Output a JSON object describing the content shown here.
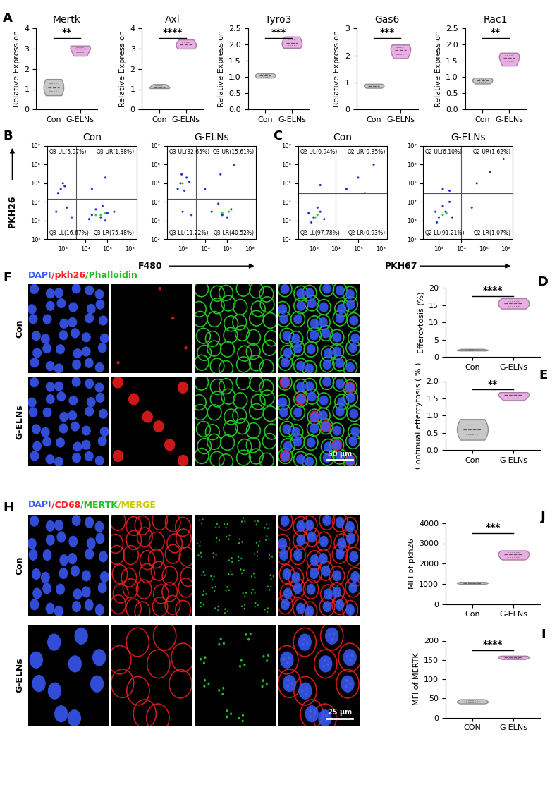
{
  "panel_letters": [
    "A",
    "B",
    "C",
    "F",
    "D",
    "E",
    "H",
    "J",
    "I"
  ],
  "chart_data": [
    {
      "type": "violin",
      "title": "Mertk",
      "y_label": "Relative Expression",
      "categories": [
        "Con",
        "G-ELNs"
      ],
      "values": [
        [
          0.7,
          1.1,
          1.5
        ],
        [
          2.65,
          3.0,
          3.15
        ]
      ],
      "colors": [
        "#c8c8c8",
        "#e9aee3"
      ],
      "ylim": [
        0,
        4
      ],
      "yticks": [
        0,
        1,
        2,
        3,
        4
      ],
      "significance": "**"
    },
    {
      "type": "violin",
      "title": "Axl",
      "y_label": "Relative Expression",
      "categories": [
        "Con",
        "G-ELNs"
      ],
      "values": [
        [
          1.05,
          1.1,
          1.25
        ],
        [
          3.0,
          3.2,
          3.45
        ]
      ],
      "colors": [
        "#c8c8c8",
        "#e9aee3"
      ],
      "ylim": [
        0,
        4
      ],
      "yticks": [
        0,
        1,
        2,
        3,
        4
      ],
      "significance": "****"
    },
    {
      "type": "violin",
      "title": "Tyro3",
      "y_label": "Relative Expression",
      "categories": [
        "Con",
        "G-ELNs"
      ],
      "values": [
        [
          0.98,
          1.05,
          1.12
        ],
        [
          1.9,
          2.05,
          2.25
        ]
      ],
      "colors": [
        "#c8c8c8",
        "#e9aee3"
      ],
      "ylim": [
        0,
        2.5
      ],
      "yticks": [
        {
          "value": 0,
          "label": "0.0"
        },
        0.5,
        {
          "value": 1,
          "label": "1.0"
        },
        1.5,
        {
          "value": 2,
          "label": "2.0"
        },
        2.5
      ],
      "significance": "***"
    },
    {
      "type": "violin",
      "title": "Gas6",
      "y_label": "Relative Expression",
      "categories": [
        "Con",
        "G-ELNs"
      ],
      "values": [
        [
          0.8,
          0.88,
          0.95
        ],
        [
          1.9,
          2.2,
          2.4
        ]
      ],
      "colors": [
        "#c8c8c8",
        "#e9aee3"
      ],
      "ylim": [
        0,
        3
      ],
      "yticks": [
        0,
        1,
        2,
        3
      ],
      "significance": "***"
    },
    {
      "type": "violin",
      "title": "Rac1",
      "y_label": "Relative Expression",
      "categories": [
        "Con",
        "G-ELNs"
      ],
      "values": [
        [
          0.8,
          0.9,
          0.98
        ],
        [
          1.35,
          1.6,
          1.75
        ]
      ],
      "colors": [
        "#c8c8c8",
        "#e9aee3"
      ],
      "ylim": [
        0,
        2.5
      ],
      "yticks": [
        {
          "value": 0,
          "label": "0.0"
        },
        0.5,
        {
          "value": 1,
          "label": "1.0"
        },
        1.5,
        {
          "value": 2,
          "label": "2.0"
        },
        2.5
      ],
      "significance": "**"
    },
    {
      "type": "scatter",
      "log": true,
      "x_label": "F480",
      "y_label": "PKH26",
      "xlim": [
        200,
        2000000
      ],
      "ylim": [
        100,
        10000000
      ],
      "xticks": [
        {
          "value": 1000,
          "label": "10³"
        },
        {
          "value": 10000,
          "label": "10⁴"
        },
        {
          "value": 100000,
          "label": "10⁵"
        },
        {
          "value": 1000000,
          "label": "10⁶"
        }
      ],
      "yticks": [
        {
          "value": 100,
          "label": "10²"
        },
        {
          "value": 1000,
          "label": "10³"
        },
        {
          "value": 10000,
          "label": "10⁴"
        },
        {
          "value": 100000,
          "label": "10⁵"
        },
        {
          "value": 1000000,
          "label": "10⁶"
        },
        {
          "value": 10000000,
          "label": "10⁷"
        }
      ],
      "plots": [
        {
          "title": "Con",
          "gate": {
            "x": 4000,
            "y": 15000
          },
          "quadrants": {
            "UL": "Q3-UL(5.97%)",
            "UR": "Q3-UR(1.88%)",
            "LL": "Q3-LL(16.67%)",
            "LR": "Q3-LR(75.48%)"
          },
          "series": [
            {
              "color": "#1f2fd0",
              "x": [
                20000,
                50000,
                100000,
                30000,
                80000,
                15000,
                200000,
                60000,
                800,
                1000,
                600,
                1200,
                500,
                1500,
                2500,
                20000,
                80000
              ],
              "y": [
                2000,
                1500,
                2500,
                4000,
                1000,
                1200,
                3000,
                6000,
                50000,
                100000,
                30000,
                70000,
                3000,
                5000,
                1500,
                50000,
                200000
              ]
            },
            {
              "color": "#2ecc40",
              "x": [
                50000,
                80000,
                30000
              ],
              "y": [
                2000,
                2500,
                2000
              ]
            }
          ]
        },
        {
          "title": "G-ELNs",
          "gate": {
            "x": 4000,
            "y": 15000
          },
          "quadrants": {
            "UL": "Q3-UL(32.65%)",
            "UR": "Q3-UR(15.61%)",
            "LL": "Q3-LL(11.22%)",
            "LR": "Q3-LR(40.52%)"
          },
          "series": [
            {
              "color": "#1f2fd0",
              "x": [
                800,
                1500,
                600,
                1200,
                2000,
                900,
                20000,
                60000,
                150000,
                40000,
                100000,
                10000,
                50000,
                200000,
                1000,
                2500
              ],
              "y": [
                100000,
                200000,
                50000,
                40000,
                120000,
                300000,
                3000,
                2000,
                4000,
                8000,
                1500,
                50000,
                300000,
                1000000,
                3000,
                2000
              ]
            },
            {
              "color": "#2ecc40",
              "x": [
                1000,
                60000,
                120000
              ],
              "y": [
                100000,
                2500,
                3000
              ]
            }
          ]
        }
      ]
    },
    {
      "type": "scatter",
      "log": true,
      "x_label": "PKH67",
      "xlim": [
        200,
        2000000
      ],
      "ylim": [
        100,
        10000000
      ],
      "xticks": [
        {
          "value": 1000,
          "label": "10³"
        },
        {
          "value": 10000,
          "label": "10⁴"
        },
        {
          "value": 100000,
          "label": "10⁵"
        },
        {
          "value": 1000000,
          "label": "10⁶"
        }
      ],
      "yticks": [
        {
          "value": 100,
          "label": "10²"
        },
        {
          "value": 1000,
          "label": "10³"
        },
        {
          "value": 10000,
          "label": "10⁴"
        },
        {
          "value": 100000,
          "label": "10⁵"
        },
        {
          "value": 1000000,
          "label": "10⁶"
        },
        {
          "value": 10000000,
          "label": "10⁷"
        }
      ],
      "plots": [
        {
          "title": "Con",
          "gate": {
            "x": 10000,
            "y": 30000
          },
          "quadrants": {
            "UL": "Q2-UL(0.94%)",
            "UR": "Q2-UR(0.35%)",
            "LL": "Q2-LL(97.78%)",
            "LR": "Q2-LR(0.93%)"
          },
          "series": [
            {
              "color": "#1f2fd0",
              "x": [
                1000,
                2000,
                800,
                3000,
                1500,
                600,
                30000,
                100000,
                500000,
                200000,
                2000
              ],
              "y": [
                1500,
                3000,
                800,
                1200,
                5000,
                2500,
                50000,
                200000,
                1000000,
                30000,
                80000
              ]
            },
            {
              "color": "#2ecc40",
              "x": [
                1200,
                1500
              ],
              "y": [
                1500,
                2000
              ]
            }
          ]
        },
        {
          "title": "G-ELNs",
          "gate": {
            "x": 10000,
            "y": 30000
          },
          "quadrants": {
            "UL": "Q2-UL(6.10%)",
            "UR": "Q2-UR(1.62%)",
            "LL": "Q2-LL(91.21%)",
            "LR": "Q2-LR(1.07%)"
          },
          "series": [
            {
              "color": "#1f2fd0",
              "x": [
                1000,
                2000,
                800,
                4000,
                1500,
                3000,
                700,
                1500,
                3000,
                50000,
                200000,
                800000,
                30000
              ],
              "y": [
                1500,
                3000,
                800,
                1500,
                6000,
                10000,
                3000,
                50000,
                40000,
                100000,
                400000,
                2000000,
                5000
              ]
            },
            {
              "color": "#2ecc40",
              "x": [
                1500,
                2200
              ],
              "y": [
                2000,
                2500
              ]
            }
          ]
        }
      ]
    },
    {
      "type": "violin",
      "y_label": "Effercytosis (%)",
      "categories": [
        "Con",
        "G-ELNs"
      ],
      "values": [
        [
          1.8,
          2.0,
          2.3
        ],
        [
          14.0,
          15.5,
          17.0
        ]
      ],
      "colors": [
        "#c8c8c8",
        "#e9aee3"
      ],
      "ylim": [
        0,
        20
      ],
      "yticks": [
        0,
        5,
        10,
        15,
        20
      ],
      "significance": "****"
    },
    {
      "type": "violin",
      "y_label": "Continual effercytosis ( % )",
      "categories": [
        "Con",
        "G-ELNs"
      ],
      "values": [
        [
          0.3,
          0.6,
          0.9
        ],
        [
          1.45,
          1.6,
          1.68
        ]
      ],
      "colors": [
        "#c8c8c8",
        "#e9aee3"
      ],
      "ylim": [
        0,
        2
      ],
      "yticks": [
        {
          "value": 0,
          "label": "0.0"
        },
        0.5,
        {
          "value": 1,
          "label": "1.0"
        },
        1.5,
        {
          "value": 2,
          "label": "2.0"
        }
      ],
      "significance": "**"
    },
    {
      "type": "violin",
      "y_label": "MFI of pkh26",
      "categories": [
        "Con",
        "G-ELNs"
      ],
      "values": [
        [
          1000,
          1050,
          1100
        ],
        [
          2200,
          2450,
          2650
        ]
      ],
      "colors": [
        "#c8c8c8",
        "#e9aee3"
      ],
      "ylim": [
        0,
        4000
      ],
      "yticks": [
        0,
        1000,
        2000,
        3000,
        4000
      ],
      "significance": "***"
    },
    {
      "type": "violin",
      "y_label": "MFI of MERTK",
      "categories": [
        "CON",
        "G-ELNs"
      ],
      "values": [
        [
          37,
          42,
          48
        ],
        [
          152,
          157,
          161
        ]
      ],
      "colors": [
        "#c8c8c8",
        "#e9aee3"
      ],
      "ylim": [
        0,
        200
      ],
      "yticks": [
        0,
        50,
        100,
        150,
        200
      ],
      "significance": "****"
    }
  ],
  "images": [
    {
      "header_parts": [
        {
          "text": "DAPI",
          "color": "#3a5bff"
        },
        {
          "text": "/pkh26",
          "color": "#ff2020"
        },
        {
          "text": "/Phalloidin",
          "color": "#22c022"
        }
      ],
      "rows": [
        "Con",
        "G-ELNs"
      ],
      "scale_bar": "50 μm"
    },
    {
      "header_parts": [
        {
          "text": "DAPI",
          "color": "#3a5bff"
        },
        {
          "text": "/CD68",
          "color": "#ff2020"
        },
        {
          "text": "/MERTK",
          "color": "#22c022"
        },
        {
          "text": "/MERGE",
          "color": "#c8c800"
        }
      ],
      "rows": [
        "Con",
        "G-ELNs"
      ],
      "scale_bar": "25 μm"
    }
  ]
}
